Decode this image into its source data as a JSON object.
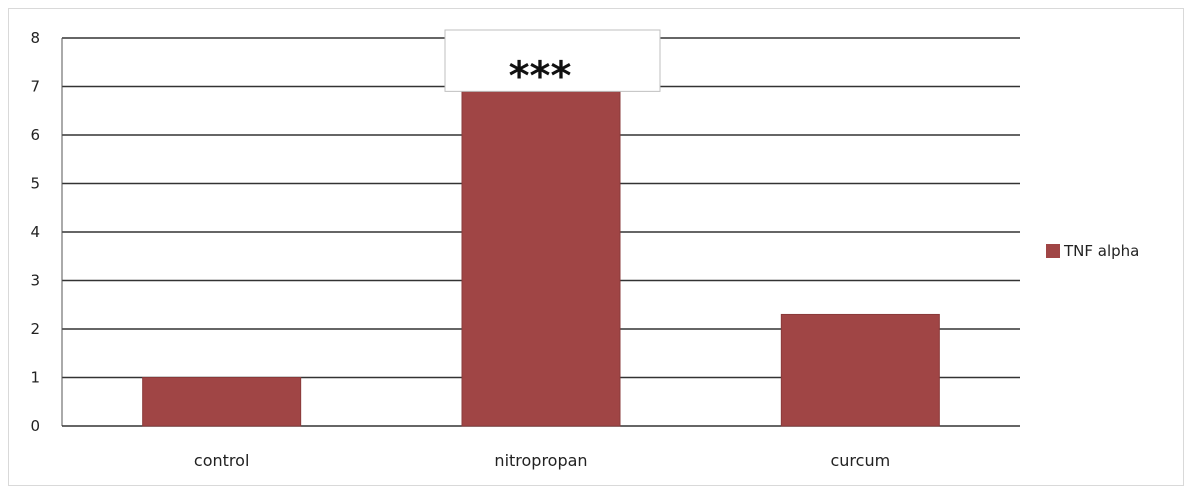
{
  "chart_data": {
    "type": "bar",
    "categories": [
      "control",
      "nitropropan",
      "curcum"
    ],
    "series": [
      {
        "name": "TNF alpha",
        "values": [
          1.0,
          6.9,
          2.3
        ],
        "color": "#a04545"
      }
    ],
    "ylim": [
      0,
      8
    ],
    "yticks": [
      "0",
      "1",
      "2",
      "3",
      "4",
      "5",
      "6",
      "7",
      "8"
    ],
    "grid": true,
    "legend_position": "right",
    "annotations": [
      {
        "text": "***",
        "category": "nitropropan"
      }
    ]
  }
}
